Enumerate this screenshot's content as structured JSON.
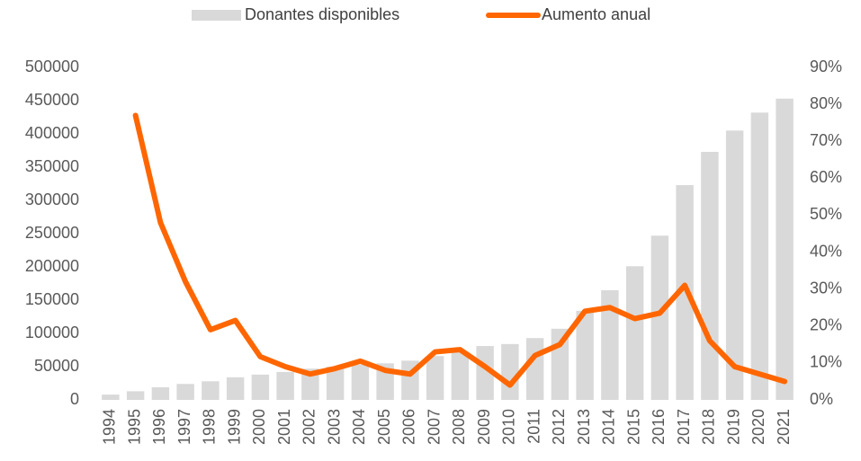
{
  "chart_data": {
    "type": "bar_line",
    "categories": [
      "1994",
      "1995",
      "1996",
      "1997",
      "1998",
      "1999",
      "2000",
      "2001",
      "2002",
      "2003",
      "2004",
      "2005",
      "2006",
      "2007",
      "2008",
      "2009",
      "2010",
      "2011",
      "2012",
      "2013",
      "2014",
      "2015",
      "2016",
      "2017",
      "2018",
      "2019",
      "2020",
      "2021"
    ],
    "series": [
      {
        "name": "Donantes disponibles",
        "color": "#d9d9d9",
        "type": "bar",
        "values": [
          8000,
          13000,
          19000,
          24000,
          28000,
          34000,
          38000,
          42000,
          47000,
          50000,
          53000,
          55000,
          59000,
          66000,
          72000,
          81000,
          84000,
          93000,
          107000,
          134000,
          165000,
          201000,
          247000,
          323000,
          373000,
          405000,
          432000,
          453000
        ]
      },
      {
        "name": "Aumento anual",
        "color": "#ff6600",
        "type": "line",
        "axis": "y2",
        "values": [
          null,
          77,
          48,
          32,
          19,
          21.5,
          11.7,
          9,
          7,
          8.5,
          10.5,
          8,
          7,
          13,
          13.6,
          9,
          4,
          12,
          15,
          24,
          25,
          22,
          23.5,
          31,
          16,
          9,
          7,
          5
        ]
      }
    ],
    "ylim": [
      0,
      500000
    ],
    "yticks": [
      0,
      50000,
      100000,
      150000,
      200000,
      250000,
      300000,
      350000,
      400000,
      450000,
      500000
    ],
    "y2lim": [
      0,
      90
    ],
    "y2ticks": [
      {
        "value": 0,
        "label": "0%"
      },
      {
        "value": 10,
        "label": "10%"
      },
      {
        "value": 20,
        "label": "20%"
      },
      {
        "value": 30,
        "label": "30%"
      },
      {
        "value": 40,
        "label": "40%"
      },
      {
        "value": 50,
        "label": "50%"
      },
      {
        "value": 60,
        "label": "60%"
      },
      {
        "value": 70,
        "label": "70%"
      },
      {
        "value": 80,
        "label": "80%"
      },
      {
        "value": 90,
        "label": "90%"
      }
    ],
    "legend": "top",
    "grid": false
  }
}
